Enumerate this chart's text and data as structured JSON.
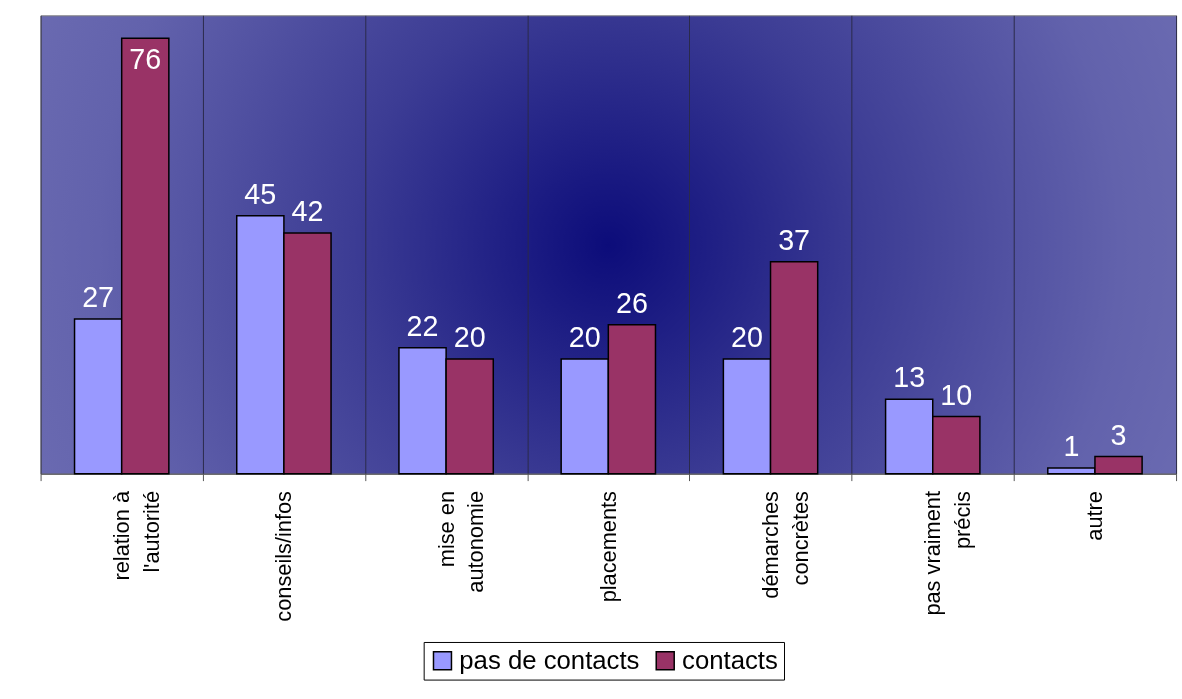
{
  "chart_data": {
    "type": "bar",
    "categories": [
      "relation à l'autorité",
      "conseils/infos",
      "mise en autonomie",
      "placements",
      "démarches concrètes",
      "pas vraiment précis",
      "autre"
    ],
    "series": [
      {
        "name": "pas de contacts",
        "color": "#9999ff",
        "values": [
          27,
          45,
          22,
          20,
          20,
          13,
          1
        ]
      },
      {
        "name": "contacts",
        "color": "#993366",
        "values": [
          76,
          42,
          20,
          26,
          37,
          10,
          3
        ]
      }
    ],
    "data_labels": true,
    "grid": "x",
    "legend": "bottom"
  }
}
